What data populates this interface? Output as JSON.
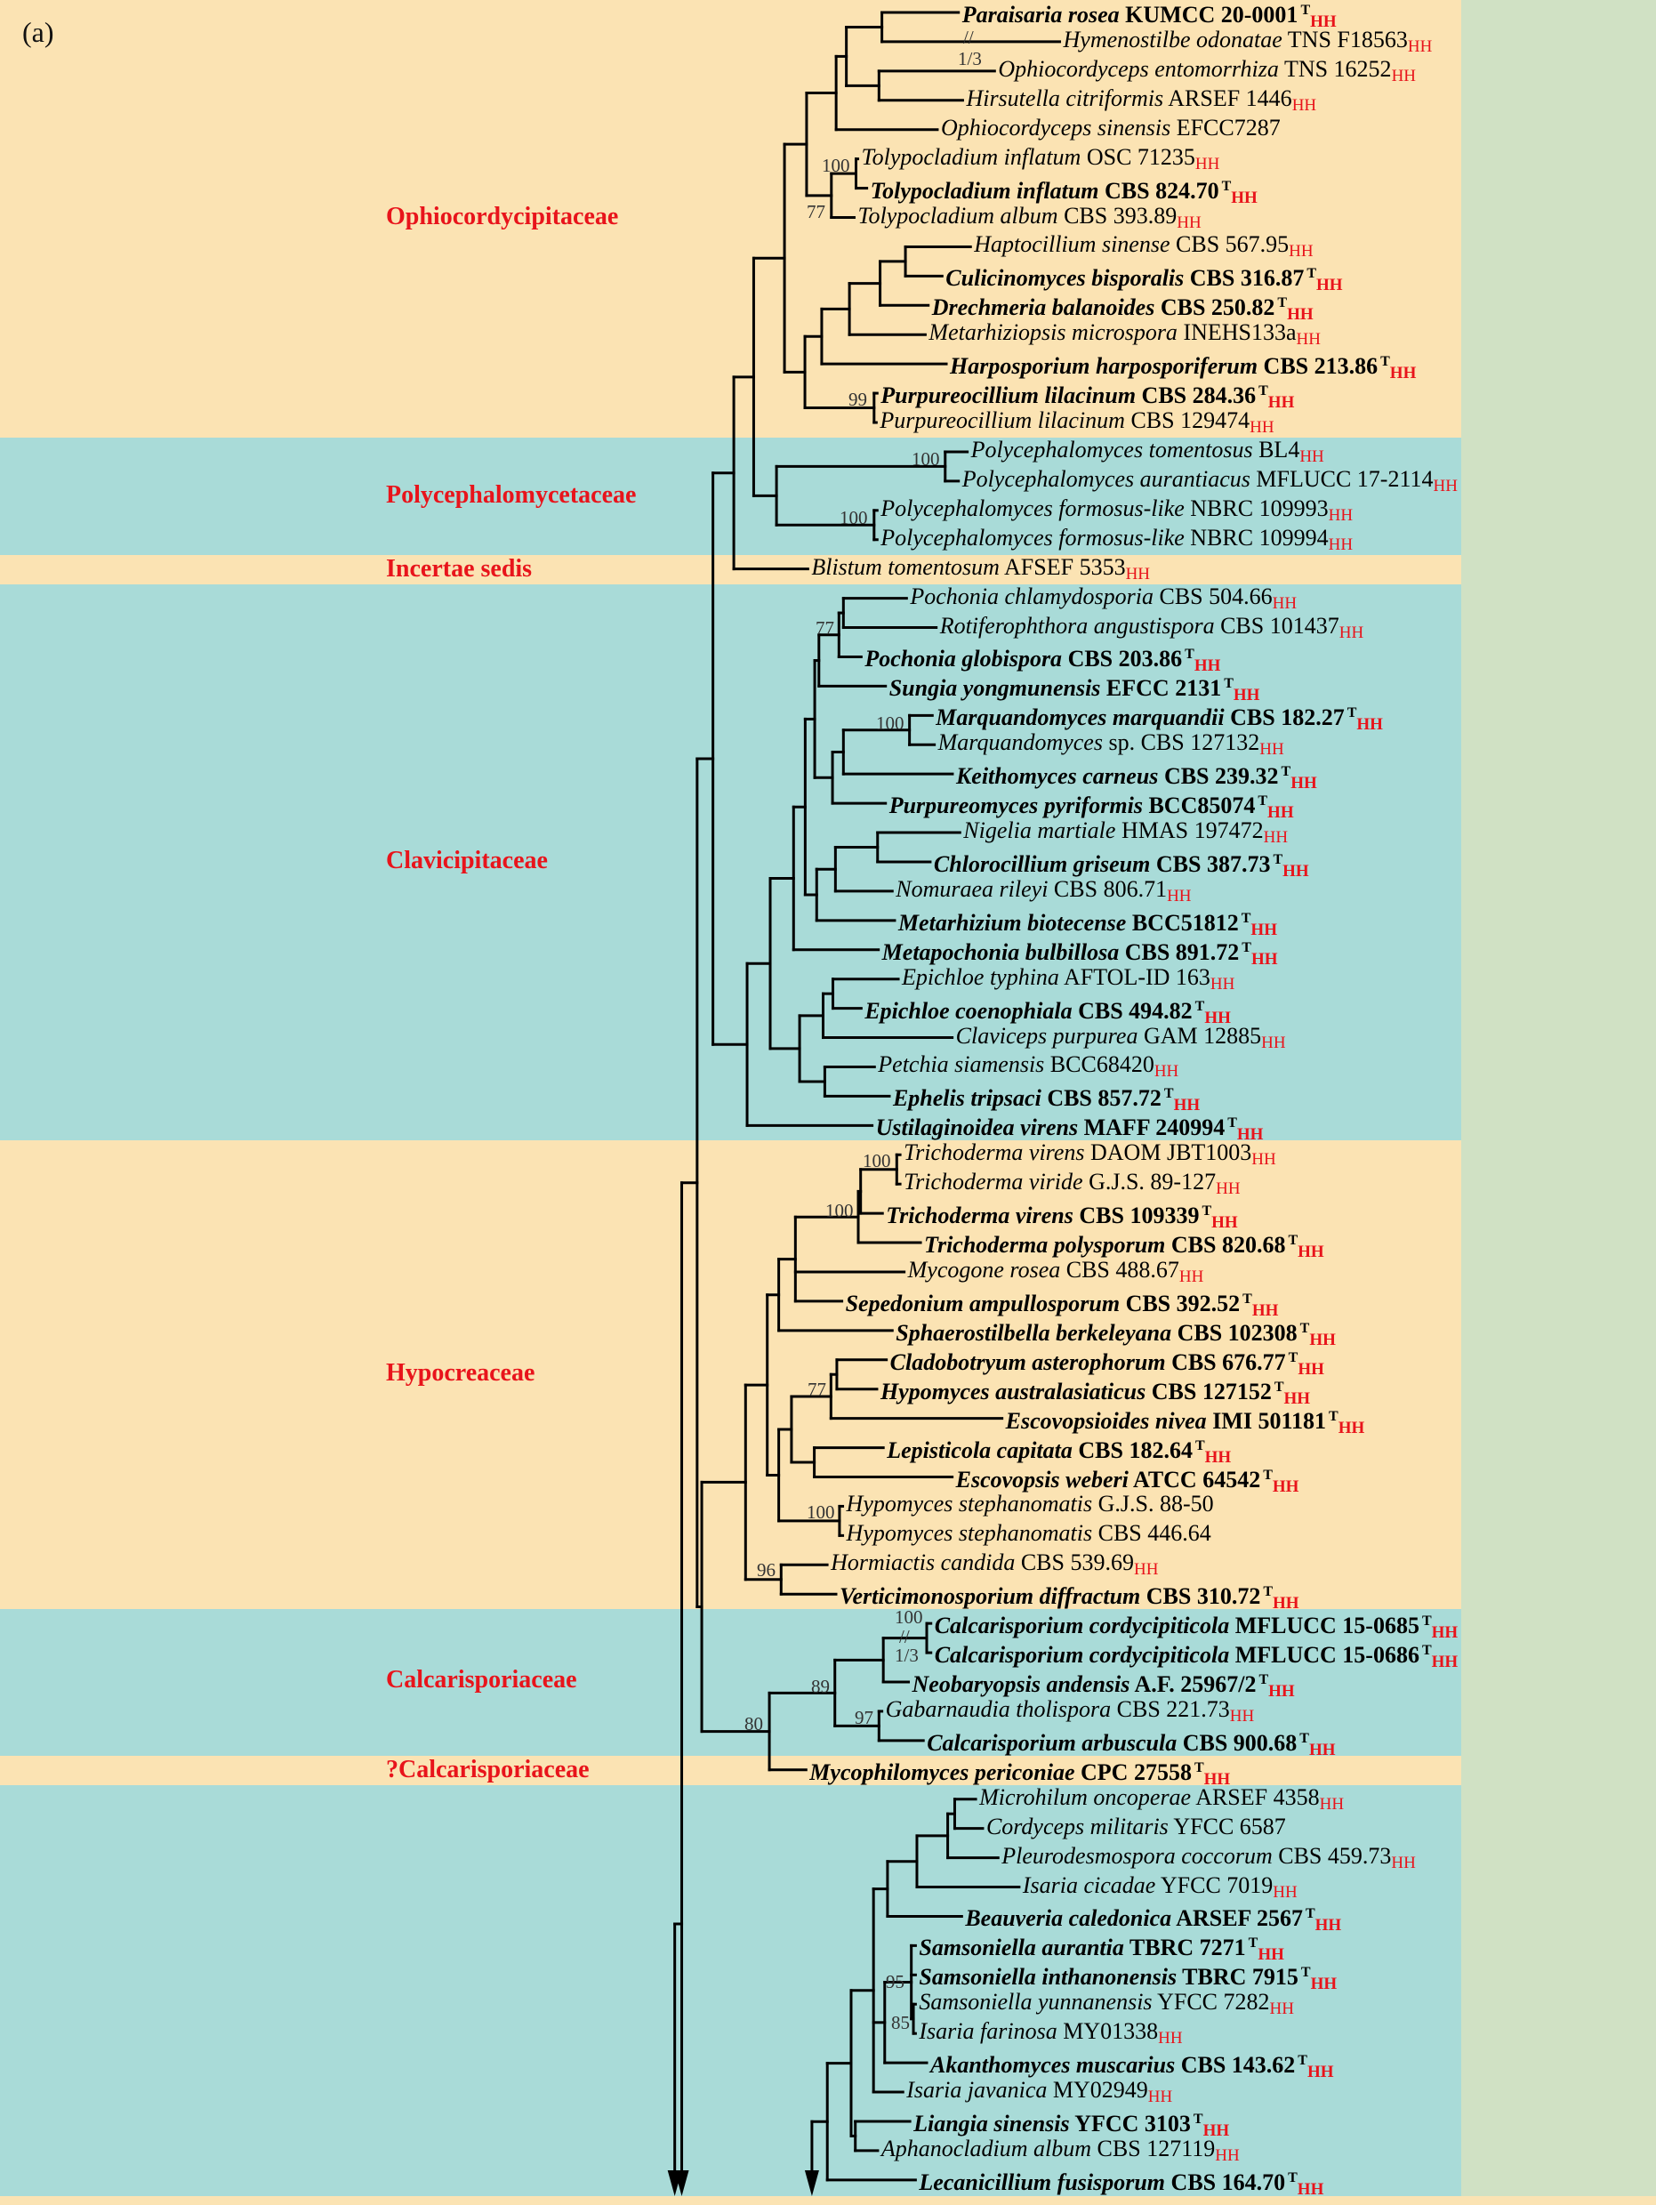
{
  "panel_label": "(a)",
  "colors": {
    "band_orange": "#FBE3B3",
    "band_teal": "#A9DBD8",
    "strip_green": "#D0E1C4",
    "family_red": "#E8141B",
    "hh_red": "#E8141B",
    "branch": "#000000"
  },
  "families": [
    {
      "name": "Ophiocordycipitaceae",
      "band": "orange"
    },
    {
      "name": "Polycephalomycetaceae",
      "band": "teal"
    },
    {
      "name": "Incertae sedis",
      "band": "orange"
    },
    {
      "name": "Clavicipitaceae",
      "band": "teal"
    },
    {
      "name": "Hypocreaceae",
      "band": "orange"
    },
    {
      "name": "Calcarisporiaceae",
      "band": "teal"
    },
    {
      "name": "?Calcarisporiaceae",
      "band": "orange"
    }
  ],
  "break_mark": "//",
  "taxa": [
    {
      "name": "Paraisaria rosea",
      "strain": "KUMCC 20-0001",
      "bold": true,
      "sup": "T",
      "sub": "HH"
    },
    {
      "name": "Hymenostilbe odonatae",
      "strain": "TNS F18563",
      "bold": false,
      "sub": "HH"
    },
    {
      "name": "Ophiocordyceps entomorrhiza",
      "strain": "TNS 16252",
      "bold": false,
      "sub": "HH"
    },
    {
      "name": "Hirsutella citriformis",
      "strain": "ARSEF 1446",
      "bold": false,
      "sub": "HH"
    },
    {
      "name": "Ophiocordyceps sinensis",
      "strain": "EFCC7287",
      "bold": false
    },
    {
      "name": "Tolypocladium inflatum",
      "strain": "OSC 71235",
      "bold": false,
      "sub": "HH"
    },
    {
      "name": "Tolypocladium inflatum",
      "strain": "CBS 824.70",
      "bold": true,
      "sup": "T",
      "sub": "HH"
    },
    {
      "name": "Tolypocladium album",
      "strain": "CBS 393.89",
      "bold": false,
      "sub": "HH"
    },
    {
      "name": "Haptocillium sinense",
      "strain": "CBS 567.95",
      "bold": false,
      "sub": "HH"
    },
    {
      "name": "Culicinomyces bisporalis",
      "strain": "CBS 316.87",
      "bold": true,
      "sup": "T",
      "sub": "HH"
    },
    {
      "name": "Drechmeria balanoides",
      "strain": "CBS 250.82",
      "bold": true,
      "sup": "T",
      "sub": "HH"
    },
    {
      "name": "Metarhiziopsis microspora",
      "strain": "INEHS133a",
      "bold": false,
      "sub": "HH"
    },
    {
      "name": "Harposporium harposporiferum",
      "strain": "CBS 213.86",
      "bold": true,
      "sup": "T",
      "sub": "HH"
    },
    {
      "name": "Purpureocillium lilacinum",
      "strain": "CBS 284.36",
      "bold": true,
      "sup": "T",
      "sub": "HH"
    },
    {
      "name": "Purpureocillium lilacinum",
      "strain": "CBS 129474",
      "bold": false,
      "sub": "HH"
    },
    {
      "name": "Polycephalomyces tomentosus",
      "strain": "BL4",
      "bold": false,
      "sub": "HH"
    },
    {
      "name": "Polycephalomyces aurantiacus",
      "strain": "MFLUCC 17-2114",
      "bold": false,
      "sub": "HH"
    },
    {
      "name": "Polycephalomyces formosus-like",
      "strain": "NBRC 109993",
      "bold": false,
      "sub": "HH"
    },
    {
      "name": "Polycephalomyces formosus-like",
      "strain": "NBRC 109994",
      "bold": false,
      "sub": "HH"
    },
    {
      "name": "Blistum tomentosum",
      "strain": "AFSEF 5353",
      "bold": false,
      "sub": "HH"
    },
    {
      "name": "Pochonia chlamydosporia",
      "strain": "CBS 504.66",
      "bold": false,
      "sub": "HH"
    },
    {
      "name": "Rotiferophthora angustispora",
      "strain": "CBS 101437",
      "bold": false,
      "sub": "HH"
    },
    {
      "name": "Pochonia globispora",
      "strain": "CBS 203.86",
      "bold": true,
      "sup": "T",
      "sub": "HH"
    },
    {
      "name": "Sungia yongmunensis",
      "strain": "EFCC 2131",
      "bold": true,
      "sup": "T",
      "sub": "HH"
    },
    {
      "name": "Marquandomyces marquandii",
      "strain": "CBS 182.27",
      "bold": true,
      "sup": "T",
      "sub": "HH"
    },
    {
      "name": "Marquandomyces",
      "strain": "sp. CBS 127132",
      "bold": false,
      "sub": "HH"
    },
    {
      "name": "Keithomyces carneus",
      "strain": "CBS 239.32",
      "bold": true,
      "sup": "T",
      "sub": "HH"
    },
    {
      "name": "Purpureomyces pyriformis",
      "strain": "BCC85074",
      "bold": true,
      "sup": "T",
      "sub": "HH"
    },
    {
      "name": "Nigelia martiale",
      "strain": "HMAS 197472",
      "bold": false,
      "sub": "HH"
    },
    {
      "name": "Chlorocillium griseum",
      "strain": "CBS 387.73",
      "bold": true,
      "sup": "T",
      "sub": "HH"
    },
    {
      "name": "Nomuraea rileyi",
      "strain": "CBS 806.71",
      "bold": false,
      "sub": "HH"
    },
    {
      "name": "Metarhizium biotecense",
      "strain": "BCC51812",
      "bold": true,
      "sup": "T",
      "sub": "HH"
    },
    {
      "name": "Metapochonia bulbillosa",
      "strain": "CBS 891.72",
      "bold": true,
      "sup": "T",
      "sub": "HH"
    },
    {
      "name": "Epichloe typhina",
      "strain": "AFTOL-ID 163",
      "bold": false,
      "sub": "HH"
    },
    {
      "name": "Epichloe coenophiala",
      "strain": "CBS 494.82",
      "bold": true,
      "sup": "T",
      "sub": "HH"
    },
    {
      "name": "Claviceps purpurea",
      "strain": "GAM 12885",
      "bold": false,
      "sub": "HH"
    },
    {
      "name": "Petchia siamensis",
      "strain": "BCC68420",
      "bold": false,
      "sub": "HH"
    },
    {
      "name": "Ephelis tripsaci",
      "strain": "CBS 857.72",
      "bold": true,
      "sup": "T",
      "sub": "HH"
    },
    {
      "name": "Ustilaginoidea virens",
      "strain": "MAFF 240994",
      "bold": true,
      "sup": "T",
      "sub": "HH"
    },
    {
      "name": "Trichoderma virens",
      "strain": "DAOM JBT1003",
      "bold": false,
      "sub": "HH"
    },
    {
      "name": "Trichoderma viride",
      "strain": "G.J.S. 89-127",
      "bold": false,
      "sub": "HH"
    },
    {
      "name": "Trichoderma virens",
      "strain": "CBS 109339",
      "bold": true,
      "sup": "T",
      "sub": "HH"
    },
    {
      "name": "Trichoderma polysporum",
      "strain": "CBS 820.68",
      "bold": true,
      "sup": "T",
      "sub": "HH"
    },
    {
      "name": "Mycogone rosea",
      "strain": "CBS 488.67",
      "bold": false,
      "sub": "HH"
    },
    {
      "name": "Sepedonium ampullosporum",
      "strain": "CBS 392.52",
      "bold": true,
      "sup": "T",
      "sub": "HH"
    },
    {
      "name": "Sphaerostilbella berkeleyana",
      "strain": "CBS 102308",
      "bold": true,
      "sup": "T",
      "sub": "HH"
    },
    {
      "name": "Cladobotryum asterophorum",
      "strain": "CBS 676.77",
      "bold": true,
      "sup": "T",
      "sub": "HH"
    },
    {
      "name": "Hypomyces australasiaticus",
      "strain": "CBS 127152",
      "bold": true,
      "sup": "T",
      "sub": "HH"
    },
    {
      "name": "Escovopsioides nivea",
      "strain": "IMI 501181",
      "bold": true,
      "sup": "T",
      "sub": "HH"
    },
    {
      "name": "Lepisticola capitata",
      "strain": "CBS 182.64",
      "bold": true,
      "sup": "T",
      "sub": "HH"
    },
    {
      "name": "Escovopsis weberi",
      "strain": "ATCC 64542",
      "bold": true,
      "sup": "T",
      "sub": "HH"
    },
    {
      "name": "Hypomyces stephanomatis",
      "strain": "G.J.S. 88-50",
      "bold": false
    },
    {
      "name": "Hypomyces stephanomatis",
      "strain": "CBS 446.64",
      "bold": false
    },
    {
      "name": "Hormiactis candida",
      "strain": "CBS 539.69",
      "bold": false,
      "sub": "HH"
    },
    {
      "name": "Verticimonosporium diffractum",
      "strain": "CBS 310.72",
      "bold": true,
      "sup": "T",
      "sub": "HH"
    },
    {
      "name": "Calcarisporium cordycipiticola",
      "strain": "MFLUCC 15-0685",
      "bold": true,
      "sup": "T",
      "sub": "HH"
    },
    {
      "name": "Calcarisporium cordycipiticola",
      "strain": "MFLUCC 15-0686",
      "bold": true,
      "sup": "T",
      "sub": "HH"
    },
    {
      "name": "Neobaryopsis andensis",
      "strain": "A.F. 25967/2",
      "bold": true,
      "sup": "T",
      "sub": "HH"
    },
    {
      "name": "Gabarnaudia tholispora",
      "strain": "CBS 221.73",
      "bold": false,
      "sub": "HH"
    },
    {
      "name": "Calcarisporium arbuscula",
      "strain": "CBS 900.68",
      "bold": true,
      "sup": "T",
      "sub": "HH"
    },
    {
      "name": "Mycophilomyces periconiae",
      "strain": "CPC 27558",
      "bold": true,
      "sup": "T",
      "sub": "HH"
    },
    {
      "name": "Microhilum oncoperae",
      "strain": "ARSEF 4358",
      "bold": false,
      "sub": "HH"
    },
    {
      "name": "Cordyceps militaris",
      "strain": "YFCC 6587",
      "bold": false
    },
    {
      "name": "Pleurodesmospora coccorum",
      "strain": "CBS 459.73",
      "bold": false,
      "sub": "HH"
    },
    {
      "name": "Isaria cicadae",
      "strain": "YFCC 7019",
      "bold": false,
      "sub": "HH"
    },
    {
      "name": "Beauveria caledonica",
      "strain": "ARSEF 2567",
      "bold": true,
      "sup": "T",
      "sub": "HH"
    },
    {
      "name": "Samsoniella aurantia",
      "strain": "TBRC 7271",
      "bold": true,
      "sup": "T",
      "sub": "HH"
    },
    {
      "name": "Samsoniella inthanonensis",
      "strain": "TBRC 7915",
      "bold": true,
      "sup": "T",
      "sub": "HH"
    },
    {
      "name": "Samsoniella yunnanensis",
      "strain": "YFCC 7282",
      "bold": false,
      "sub": "HH"
    },
    {
      "name": "Isaria farinosa",
      "strain": "MY01338",
      "bold": false,
      "sub": "HH"
    },
    {
      "name": "Akanthomyces muscarius",
      "strain": "CBS 143.62",
      "bold": true,
      "sup": "T",
      "sub": "HH"
    },
    {
      "name": "Isaria javanica",
      "strain": "MY02949",
      "bold": false,
      "sub": "HH"
    },
    {
      "name": "Liangia sinensis",
      "strain": "YFCC 3103",
      "bold": true,
      "sup": "T",
      "sub": "HH"
    },
    {
      "name": "Aphanocladium album",
      "strain": "CBS 127119",
      "bold": false,
      "sub": "HH"
    },
    {
      "name": "Lecanicillium fusisporum",
      "strain": "CBS 164.70",
      "bold": true,
      "sup": "T",
      "sub": "HH"
    }
  ],
  "supports": [
    "1/3",
    "100",
    "77",
    "99",
    "100",
    "100",
    "77",
    "100",
    "100",
    "100",
    "77",
    "100",
    "96",
    "100",
    "1/3",
    "89",
    "97",
    "80",
    "95",
    "85"
  ]
}
